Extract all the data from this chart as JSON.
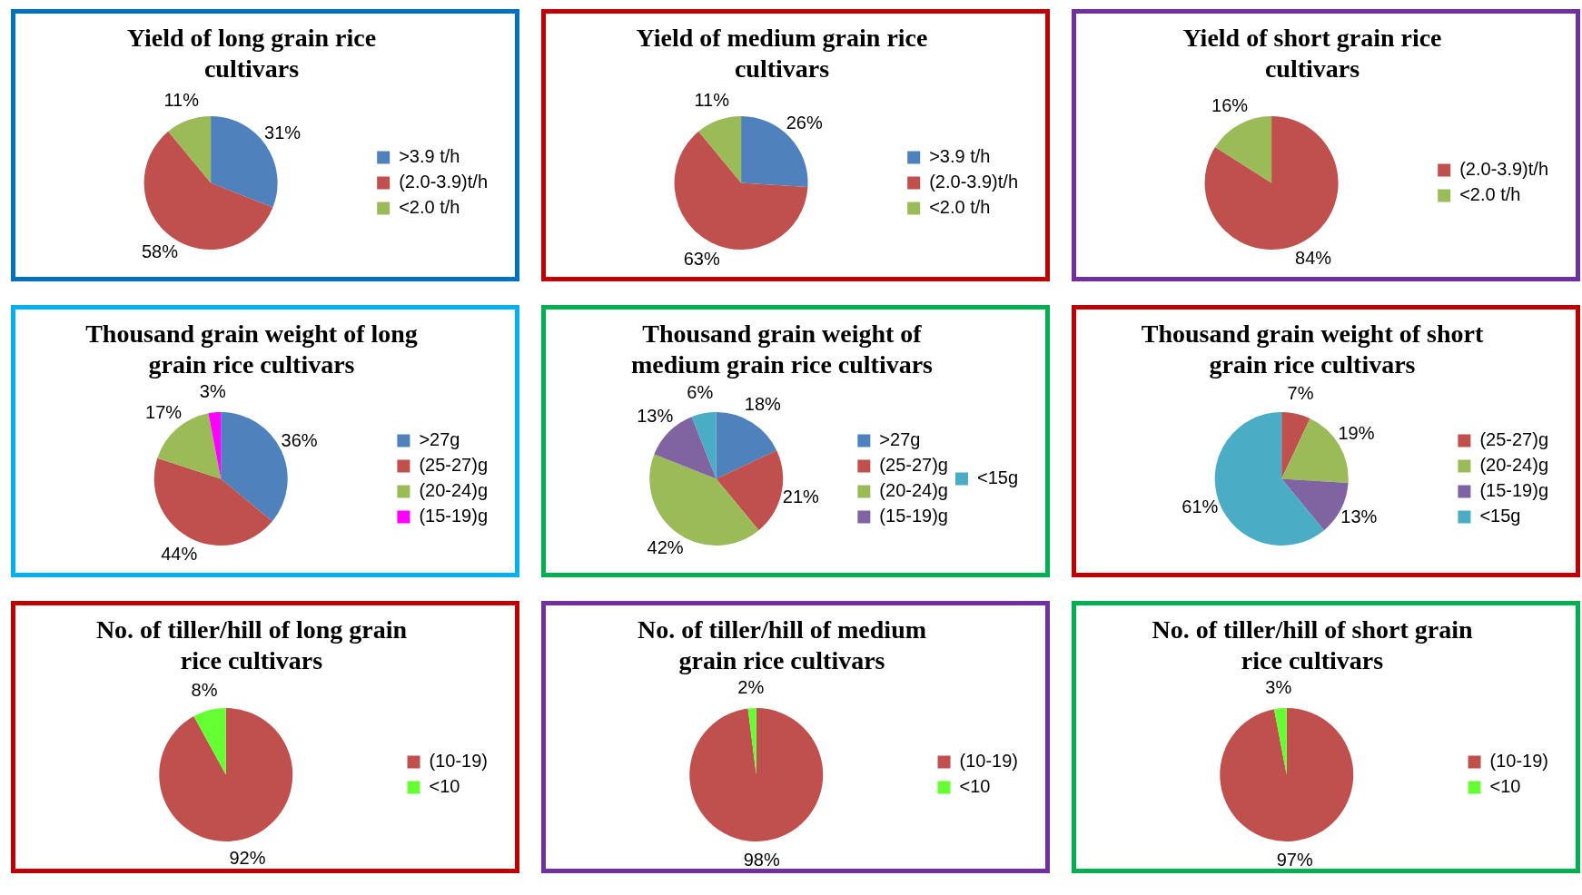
{
  "chart_data": [
    {
      "type": "pie",
      "title": "Yield of long grain rice cultivars",
      "categories": [
        ">3.9 t/h",
        "(2.0-3.9)t/h",
        "<2.0 t/h"
      ],
      "values": [
        31,
        58,
        11
      ],
      "colors": [
        "#4f81bd",
        "#c0504d",
        "#9bbb59"
      ],
      "value_labels": [
        "31%",
        "58%",
        "11%"
      ],
      "legend": "right"
    },
    {
      "type": "pie",
      "title": "Yield of medium grain rice cultivars",
      "categories": [
        ">3.9 t/h",
        "(2.0-3.9)t/h",
        "<2.0 t/h"
      ],
      "values": [
        26,
        63,
        11
      ],
      "colors": [
        "#4f81bd",
        "#c0504d",
        "#9bbb59"
      ],
      "value_labels": [
        "26%",
        "63%",
        "11%"
      ],
      "legend": "right"
    },
    {
      "type": "pie",
      "title": "Yield of short grain rice cultivars",
      "categories": [
        "(2.0-3.9)t/h",
        "<2.0 t/h"
      ],
      "values": [
        84,
        16
      ],
      "colors": [
        "#c0504d",
        "#9bbb59"
      ],
      "value_labels": [
        "84%",
        "16%"
      ],
      "legend": "right"
    },
    {
      "type": "pie",
      "title": "Thousand grain weight of long grain rice cultivars",
      "categories": [
        ">27g",
        "(25-27)g",
        "(20-24)g",
        "(15-19)g"
      ],
      "values": [
        36,
        44,
        17,
        3
      ],
      "colors": [
        "#4f81bd",
        "#c0504d",
        "#9bbb59",
        "#ff00ff"
      ],
      "value_labels": [
        "36%",
        "44%",
        "17%",
        "3%"
      ],
      "legend": "right"
    },
    {
      "type": "pie",
      "title": "Thousand grain weight of medium grain rice cultivars",
      "categories": [
        ">27g",
        "(25-27)g",
        "(20-24)g",
        "(15-19)g",
        "<15g"
      ],
      "values": [
        18,
        21,
        42,
        13,
        6
      ],
      "colors": [
        "#4f81bd",
        "#c0504d",
        "#9bbb59",
        "#8064a2",
        "#4bacc6"
      ],
      "value_labels": [
        "18%",
        "21%",
        "42%",
        "13%",
        "6%"
      ],
      "legend": "right"
    },
    {
      "type": "pie",
      "title": "Thousand grain weight of short grain rice cultivars",
      "categories": [
        "(25-27)g",
        "(20-24)g",
        "(15-19)g",
        "<15g"
      ],
      "values": [
        7,
        19,
        13,
        61
      ],
      "colors": [
        "#c0504d",
        "#9bbb59",
        "#8064a2",
        "#4bacc6"
      ],
      "value_labels": [
        "7%",
        "19%",
        "13%",
        "61%"
      ],
      "legend": "right"
    },
    {
      "type": "pie",
      "title": "No. of tiller/hill of long grain rice cultivars",
      "categories": [
        "(10-19)",
        "<10"
      ],
      "values": [
        92,
        8
      ],
      "colors": [
        "#c0504d",
        "#66ff33"
      ],
      "value_labels": [
        "92%",
        "8%"
      ],
      "legend": "right"
    },
    {
      "type": "pie",
      "title": "No. of tiller/hill of medium grain rice cultivars",
      "categories": [
        "(10-19)",
        "<10"
      ],
      "values": [
        98,
        2
      ],
      "colors": [
        "#c0504d",
        "#66ff33"
      ],
      "value_labels": [
        "98%",
        "2%"
      ],
      "legend": "right"
    },
    {
      "type": "pie",
      "title": "No. of tiller/hill of short grain rice cultivars",
      "categories": [
        "(10-19)",
        "<10"
      ],
      "values": [
        97,
        3
      ],
      "colors": [
        "#c0504d",
        "#66ff33"
      ],
      "value_labels": [
        "97%",
        "3%"
      ],
      "legend": "right"
    }
  ]
}
